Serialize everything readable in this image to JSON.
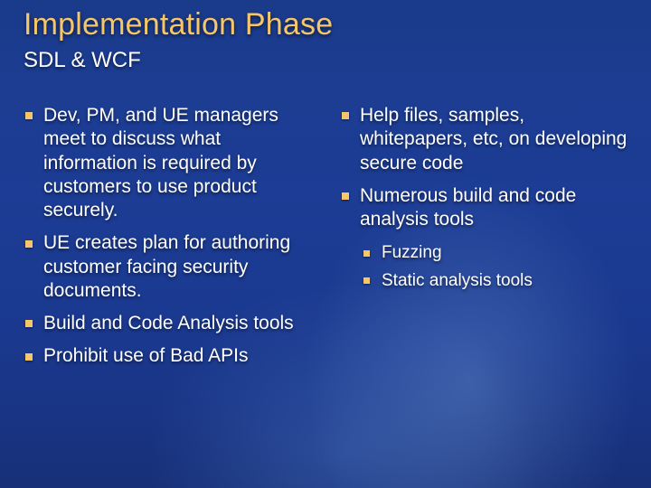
{
  "slide": {
    "title": "Implementation Phase",
    "subtitle": "SDL & WCF",
    "colors": {
      "accent": "#f6c66a",
      "text": "#ffffff",
      "bg_gradient_top": "#1a3a8a",
      "bg_gradient_bottom": "#173078"
    },
    "typography": {
      "title_fontsize_pt": 26,
      "subtitle_fontsize_pt": 18,
      "bullet_fontsize_pt": 16,
      "subbullet_fontsize_pt": 14,
      "font_family": "Arial"
    },
    "left_bullets": [
      "Dev, PM, and UE managers meet to discuss what information is required by customers to use product securely.",
      "UE creates plan for authoring customer facing security documents.",
      "Build and Code Analysis tools",
      "Prohibit use of Bad APIs"
    ],
    "right_bullets": [
      "Help files, samples, whitepapers, etc, on developing secure code",
      "Numerous build and code analysis tools"
    ],
    "right_sub_bullets": [
      "Fuzzing",
      "Static analysis tools"
    ]
  }
}
